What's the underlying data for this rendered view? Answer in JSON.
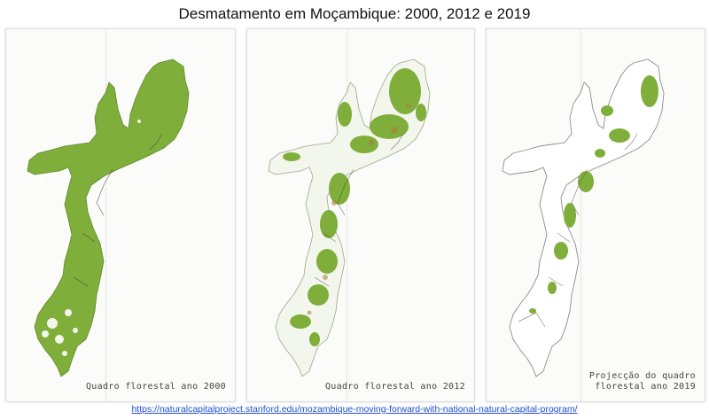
{
  "figure": {
    "title": "Desmatamento em Moçambique: 2000, 2012 e 2019",
    "source_url": "https://naturalcapitalproject.stanford.edu/mozambique-moving-forward-with-national-natural-capital-program/"
  },
  "maps": [
    {
      "caption_line1": "Quadro florestal ano 2000",
      "caption_line2": "",
      "forest_cover": "dense"
    },
    {
      "caption_line1": "Quadro florestal ano 2012",
      "caption_line2": "",
      "forest_cover": "fragmented"
    },
    {
      "caption_line1": "Projecção do quadro",
      "caption_line2": "florestal ano 2019",
      "forest_cover": "sparse"
    }
  ],
  "colors": {
    "forest": "#7fae3a",
    "forest_dark": "#6a9a2c",
    "deforested": "#ffffff",
    "degraded": "#b07a3a",
    "border": "#3a3a3a"
  }
}
